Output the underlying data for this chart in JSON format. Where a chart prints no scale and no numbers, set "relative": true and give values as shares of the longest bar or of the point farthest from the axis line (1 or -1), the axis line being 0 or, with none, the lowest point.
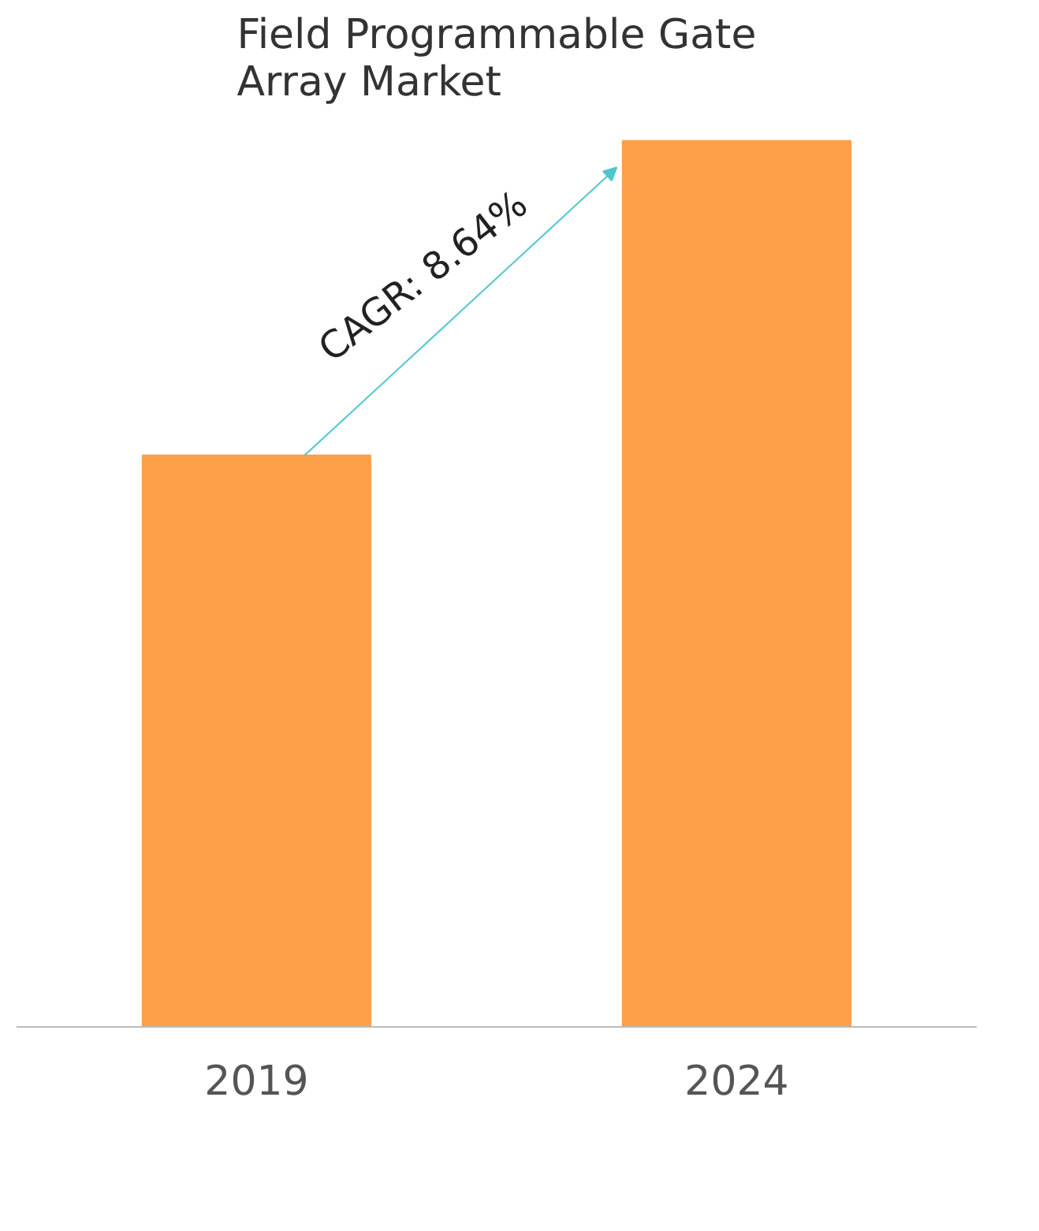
{
  "chart_data": {
    "type": "bar",
    "title": "Field Programmable Gate\nArray Market",
    "categories": [
      "2019",
      "2024"
    ],
    "values": [
      0.645,
      1
    ],
    "color": "#fda049",
    "relative": true,
    "grid": false,
    "annotations": [
      "CAGR: 8.64%"
    ]
  }
}
